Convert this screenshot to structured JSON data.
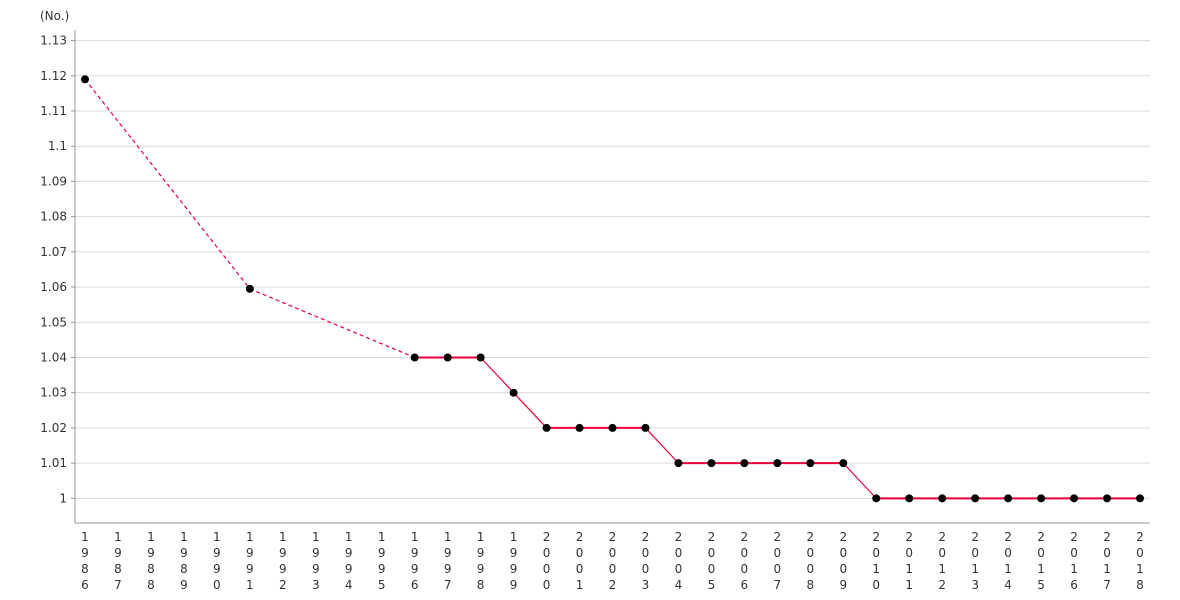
{
  "chart_data": {
    "type": "line",
    "title": "",
    "xlabel": "",
    "ylabel": "(No.)",
    "ylim": [
      0.993,
      1.133
    ],
    "yticks": [
      1,
      1.01,
      1.02,
      1.03,
      1.04,
      1.05,
      1.06,
      1.07,
      1.08,
      1.09,
      1.1,
      1.11,
      1.12,
      1.13
    ],
    "ytick_labels": [
      "1",
      "1.01",
      "1.02",
      "1.03",
      "1.04",
      "1.05",
      "1.06",
      "1.07",
      "1.08",
      "1.09",
      "1.1",
      "1.11",
      "1.12",
      "1.13"
    ],
    "grid": true,
    "x": [
      1986,
      1987,
      1988,
      1989,
      1990,
      1991,
      1992,
      1993,
      1994,
      1995,
      1996,
      1997,
      1998,
      1999,
      2000,
      2001,
      2002,
      2003,
      2004,
      2005,
      2006,
      2007,
      2008,
      2009,
      2010,
      2011,
      2012,
      2013,
      2014,
      2015,
      2016,
      2017,
      2018
    ],
    "series": [
      {
        "values": [
          1.119,
          null,
          null,
          null,
          null,
          1.0595,
          null,
          null,
          null,
          null,
          1.04,
          1.04,
          1.04,
          1.03,
          1.02,
          1.02,
          1.02,
          1.02,
          1.01,
          1.01,
          1.01,
          1.01,
          1.01,
          1.01,
          1.0,
          1.0,
          1.0,
          1.0,
          1.0,
          1.0,
          1.0,
          1.0,
          1.0
        ],
        "color": "#e8003c",
        "marker_color": "#000000",
        "gaps_drawn": "dashed"
      }
    ]
  }
}
